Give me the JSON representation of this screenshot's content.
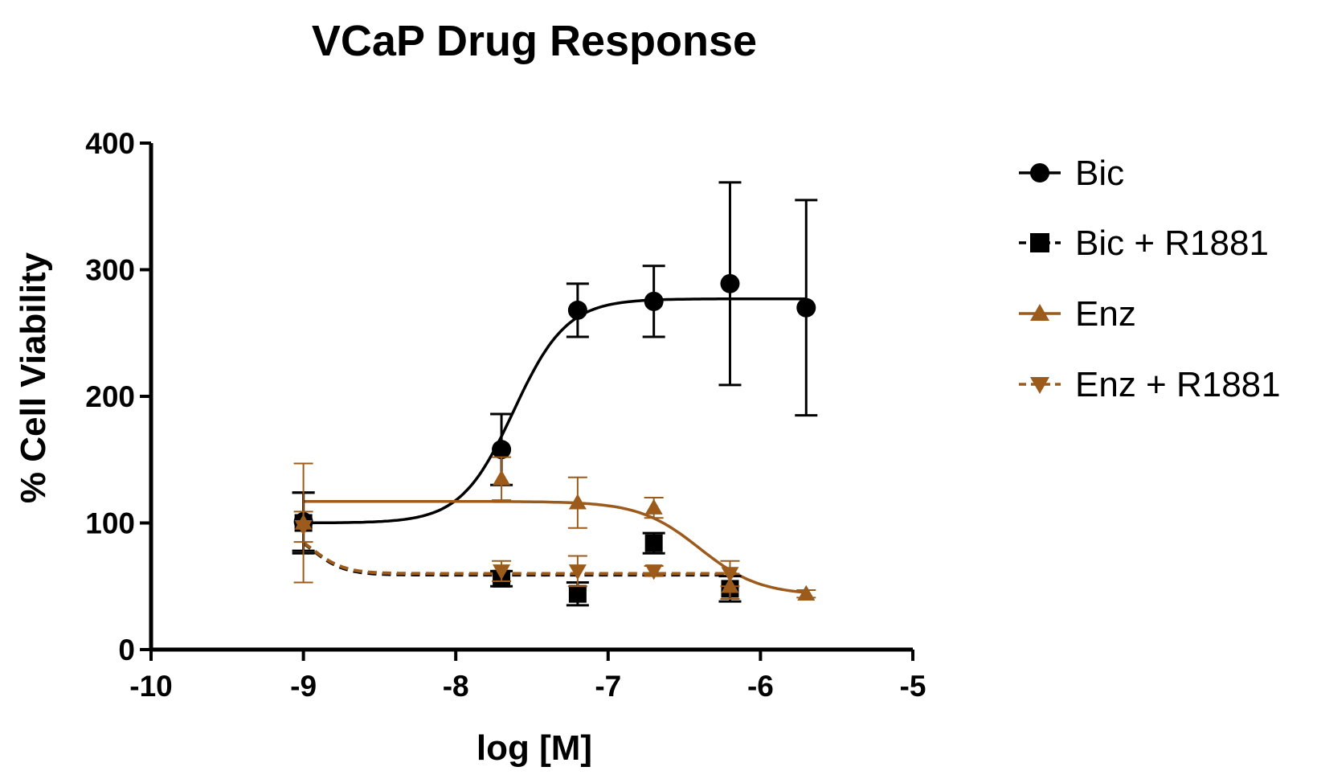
{
  "chart_data": {
    "type": "scatter",
    "title": "VCaP Drug Response",
    "xlabel": "log [M]",
    "ylabel": "% Cell Viability",
    "xlim": [
      -10,
      -5
    ],
    "ylim": [
      0,
      400
    ],
    "x_ticks": [
      "-10",
      "-9",
      "-8",
      "-7",
      "-6",
      "-5"
    ],
    "y_ticks": [
      "0",
      "100",
      "200",
      "300",
      "400"
    ],
    "grid": false,
    "legend_position": "right",
    "series": [
      {
        "name": "Bic",
        "color": "#000000",
        "marker": "circle",
        "line_style": "solid",
        "x": [
          -9,
          -7.7,
          -7.2,
          -6.7,
          -6.2,
          -5.7
        ],
        "y": [
          101,
          158,
          268,
          275,
          289,
          270
        ],
        "error": [
          23,
          28,
          21,
          28,
          80,
          85
        ],
        "fit": {
          "bottom": 100,
          "top": 277,
          "logEC50": -7.62,
          "hill": 2.5
        }
      },
      {
        "name": "Bic + R1881",
        "color": "#000000",
        "marker": "square",
        "line_style": "dashed",
        "x": [
          -9,
          -7.7,
          -7.2,
          -6.7,
          -6.2
        ],
        "y": [
          100,
          56,
          44,
          84,
          48
        ],
        "error": [
          24,
          6,
          9,
          8,
          10
        ],
        "fit": {
          "bottom": 59,
          "top": 100,
          "logEC50": -8.95,
          "hill": -4
        }
      },
      {
        "name": "Enz",
        "color": "#9C5A1B",
        "marker": "triangle-up",
        "line_style": "solid",
        "x": [
          -9,
          -7.7,
          -7.2,
          -6.7,
          -6.2,
          -5.7
        ],
        "y": [
          100,
          135,
          116,
          112,
          50,
          44
        ],
        "error": [
          47,
          17,
          20,
          8,
          10,
          3
        ],
        "fit": {
          "bottom": 43,
          "top": 117,
          "logEC50": -6.4,
          "hill": -2.2
        }
      },
      {
        "name": "Enz + R1881",
        "color": "#9C5A1B",
        "marker": "triangle-down",
        "line_style": "dashed",
        "x": [
          -9,
          -7.7,
          -7.2,
          -6.7,
          -6.2
        ],
        "y": [
          97,
          62,
          62,
          62,
          60
        ],
        "error": [
          12,
          8,
          12,
          4,
          10
        ],
        "fit": {
          "bottom": 60,
          "top": 100,
          "logEC50": -8.95,
          "hill": -4
        }
      }
    ]
  }
}
